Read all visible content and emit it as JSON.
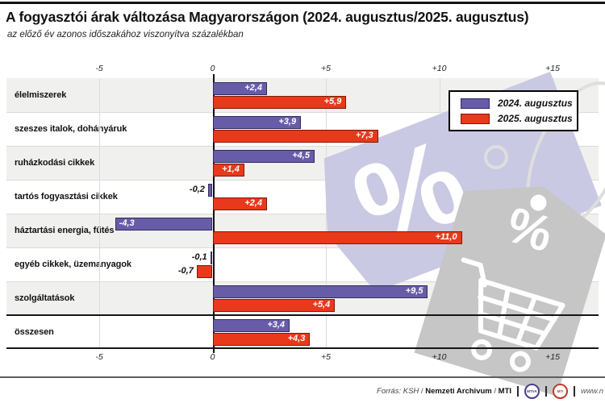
{
  "title": "A fogyasztói árak változása Magyarországon (2024. augusztus/2025. augusztus)",
  "subtitle": "az előző év azonos időszakához viszonyítva százalékban",
  "legend": {
    "items": [
      {
        "label": "2024. augusztus",
        "color": "#665CA7",
        "border": "#332C5E"
      },
      {
        "label": "2025. augusztus",
        "color": "#E8391B",
        "border": "#7E180C"
      }
    ]
  },
  "chart_data": {
    "type": "bar",
    "orientation": "horizontal",
    "title": "A fogyasztói árak változása Magyarországon (2024. augusztus/2025. augusztus)",
    "subtitle": "az előző év azonos időszakához viszonyítva százalékban",
    "unit": "percent change vs same period of previous year",
    "categories": [
      "élelmiszerek",
      "szeszes italok, dohányáruk",
      "ruházkodási cikkek",
      "tartós fogyasztási cikkek",
      "háztartási energia, fűtés",
      "egyéb cikkek, üzemanyagok",
      "szolgáltatások",
      "összesen"
    ],
    "series": [
      {
        "name": "2024. augusztus",
        "color": "#665CA7",
        "border": "#332C5E",
        "values": [
          2.4,
          3.9,
          4.5,
          -0.2,
          -4.3,
          -0.1,
          9.5,
          3.4
        ],
        "labels": [
          "+2,4",
          "+3,9",
          "+4,5",
          "-0,2",
          "-4,3",
          "-0,1",
          "+9,5",
          "+3,4"
        ]
      },
      {
        "name": "2025. augusztus",
        "color": "#E8391B",
        "border": "#7E180C",
        "values": [
          5.9,
          7.3,
          1.4,
          2.4,
          11.0,
          -0.7,
          5.4,
          4.3
        ],
        "labels": [
          "+5,9",
          "+7,3",
          "+1,4",
          "+2,4",
          "+11,0",
          "-0,7",
          "+5,4",
          "+4,3"
        ]
      }
    ],
    "x_axis": {
      "ticks": [
        -5,
        0,
        5,
        10,
        15
      ],
      "tick_labels": [
        "-5",
        "0",
        "+5",
        "+10",
        "+15"
      ],
      "range": [
        -9.1,
        17.0
      ],
      "grid": true,
      "tick_labels_position": "top and bottom"
    },
    "legend_position": "top-right",
    "emphasized_row": "összesen",
    "row_stripe_color": "#F0F0EE"
  },
  "icons": {
    "watermark1": "percent-price-tag-icon",
    "watermark2": "percent-price-tag-with-cart-icon",
    "watermark3": "shopping-cart-icon"
  },
  "footer": {
    "prefix_italic": "Forrás: KSH",
    "slash1": "/",
    "bold1": "Nemzeti Archivum",
    "slash2": "/",
    "bold2": "MTI",
    "logo1": "MTVA",
    "logo2": "MTI",
    "website": "www.n"
  }
}
